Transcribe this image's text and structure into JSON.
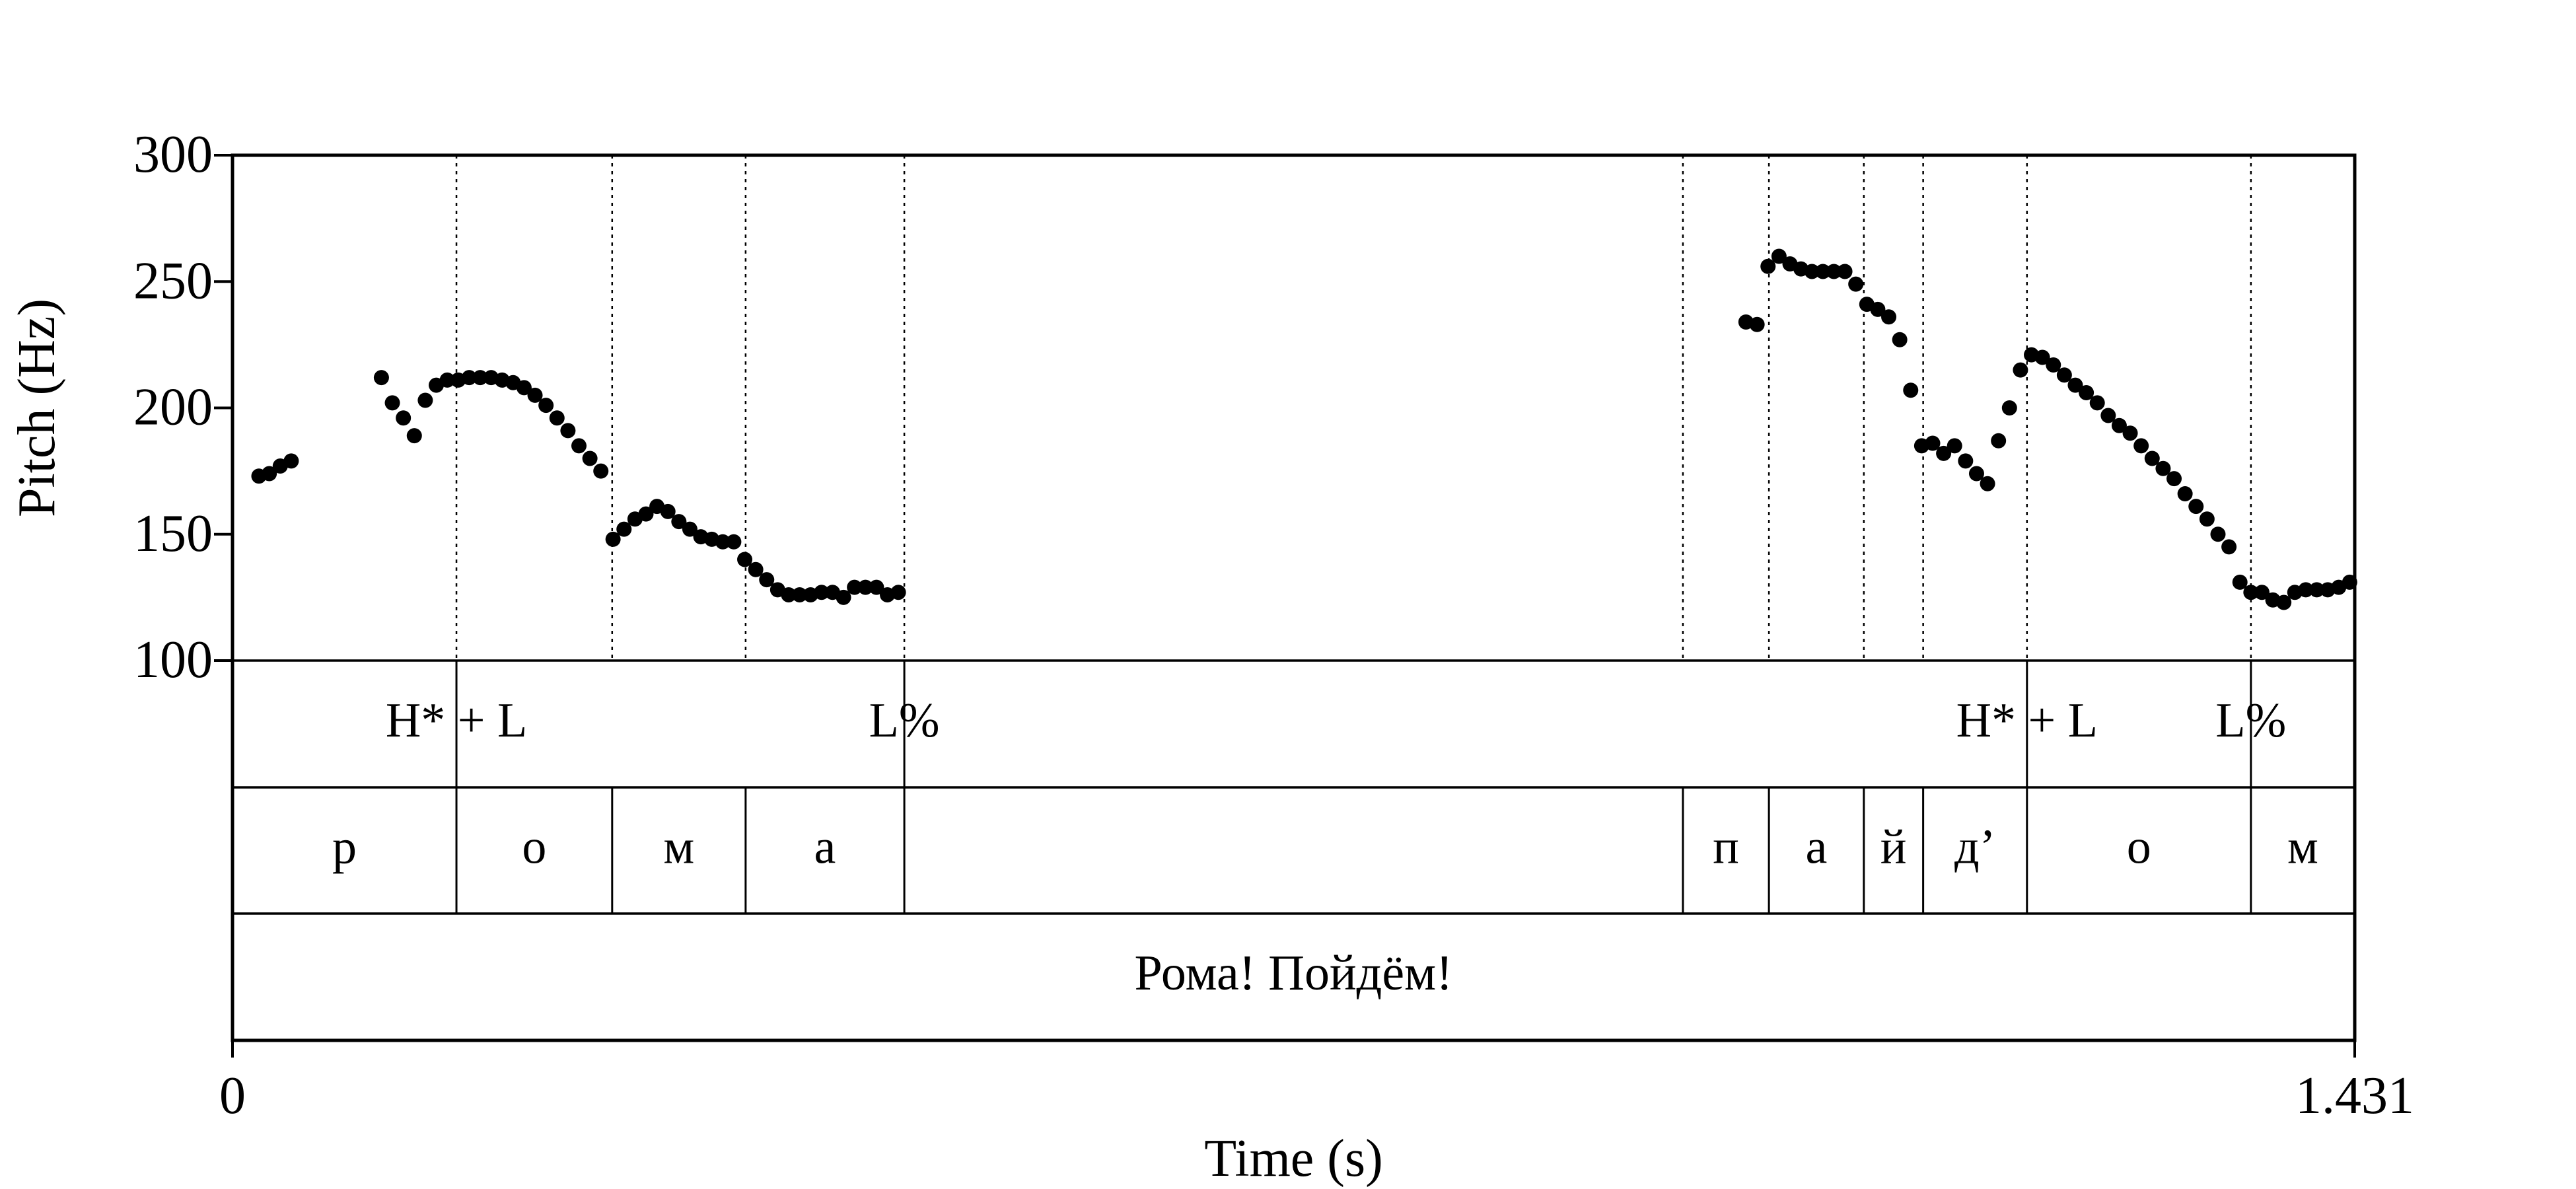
{
  "chart_data": {
    "type": "scatter",
    "title": "",
    "xlabel": "Time (s)",
    "ylabel": "Pitch (Hz)",
    "xlim": [
      0,
      1.431
    ],
    "ylim": [
      100,
      300
    ],
    "x_tick_labels": [
      "0",
      "1.431"
    ],
    "y_ticks": [
      100,
      150,
      200,
      250,
      300
    ],
    "y_tick_labels": [
      "100",
      "150",
      "200",
      "250",
      "300"
    ],
    "grid": false,
    "legend": "none",
    "point_color": "#000000",
    "series": [
      {
        "points": [
          [
            0.0178,
            173
          ],
          [
            0.0248,
            174
          ],
          [
            0.0322,
            177
          ],
          [
            0.0396,
            179
          ],
          [
            0.1004,
            212
          ],
          [
            0.1078,
            202
          ],
          [
            0.1152,
            196
          ],
          [
            0.1226,
            189
          ],
          [
            0.13,
            203
          ],
          [
            0.1374,
            209
          ],
          [
            0.1448,
            211
          ],
          [
            0.1522,
            211
          ],
          [
            0.1596,
            212
          ],
          [
            0.167,
            212
          ],
          [
            0.1744,
            212
          ],
          [
            0.1818,
            211
          ],
          [
            0.1892,
            210
          ],
          [
            0.1966,
            208
          ],
          [
            0.204,
            205
          ],
          [
            0.2114,
            201
          ],
          [
            0.2188,
            196
          ],
          [
            0.2262,
            191
          ],
          [
            0.2336,
            185
          ],
          [
            0.241,
            180
          ],
          [
            0.2484,
            175
          ],
          [
            0.2566,
            148
          ],
          [
            0.264,
            152
          ],
          [
            0.2714,
            156
          ],
          [
            0.2788,
            158
          ],
          [
            0.2862,
            161
          ],
          [
            0.2936,
            159
          ],
          [
            0.301,
            155
          ],
          [
            0.3084,
            152
          ],
          [
            0.3158,
            149
          ],
          [
            0.3232,
            148
          ],
          [
            0.3306,
            147
          ],
          [
            0.338,
            147
          ],
          [
            0.3454,
            140
          ],
          [
            0.3528,
            136
          ],
          [
            0.3602,
            132
          ],
          [
            0.3676,
            128
          ],
          [
            0.375,
            126
          ],
          [
            0.3824,
            126
          ],
          [
            0.3898,
            126
          ],
          [
            0.3972,
            127
          ],
          [
            0.4046,
            127
          ],
          [
            0.412,
            125
          ],
          [
            0.4194,
            129
          ],
          [
            0.4268,
            129
          ],
          [
            0.4342,
            129
          ],
          [
            0.4416,
            126
          ],
          [
            0.449,
            127
          ],
          [
            1.0205,
            234
          ],
          [
            1.028,
            233
          ],
          [
            1.0354,
            256
          ],
          [
            1.0428,
            260
          ],
          [
            1.0502,
            257
          ],
          [
            1.0576,
            255
          ],
          [
            1.065,
            254
          ],
          [
            1.0724,
            254
          ],
          [
            1.0798,
            254
          ],
          [
            1.0872,
            254
          ],
          [
            1.0946,
            249
          ],
          [
            1.102,
            241
          ],
          [
            1.1094,
            239
          ],
          [
            1.1168,
            236
          ],
          [
            1.1242,
            227
          ],
          [
            1.1316,
            207
          ],
          [
            1.139,
            185
          ],
          [
            1.1464,
            186
          ],
          [
            1.1538,
            182
          ],
          [
            1.1612,
            185
          ],
          [
            1.1686,
            179
          ],
          [
            1.176,
            174
          ],
          [
            1.1834,
            170
          ],
          [
            1.1908,
            187
          ],
          [
            1.1982,
            200
          ],
          [
            1.2056,
            215
          ],
          [
            1.213,
            221
          ],
          [
            1.2204,
            220
          ],
          [
            1.2278,
            217
          ],
          [
            1.2352,
            213
          ],
          [
            1.2426,
            209
          ],
          [
            1.25,
            206
          ],
          [
            1.2574,
            202
          ],
          [
            1.2648,
            197
          ],
          [
            1.2722,
            193
          ],
          [
            1.2796,
            190
          ],
          [
            1.287,
            185
          ],
          [
            1.2944,
            180
          ],
          [
            1.3018,
            176
          ],
          [
            1.3092,
            172
          ],
          [
            1.3166,
            166
          ],
          [
            1.324,
            161
          ],
          [
            1.3314,
            156
          ],
          [
            1.3388,
            150
          ],
          [
            1.3462,
            145
          ],
          [
            1.3536,
            131
          ],
          [
            1.361,
            127
          ],
          [
            1.3684,
            127
          ],
          [
            1.3758,
            124
          ],
          [
            1.3832,
            123
          ],
          [
            1.3906,
            127
          ],
          [
            1.398,
            128
          ],
          [
            1.4054,
            128
          ],
          [
            1.4128,
            128
          ],
          [
            1.4202,
            129
          ],
          [
            1.4276,
            131
          ]
        ]
      }
    ],
    "pitch_boundaries": [
      0.151,
      0.256,
      0.346,
      0.453,
      0.978,
      1.036,
      1.1,
      1.14,
      1.21,
      1.361
    ],
    "tiers": [
      {
        "name": "tones",
        "boundaries": [
          0.151,
          0.453,
          1.21,
          1.361
        ],
        "labels": [
          {
            "text": "H* + L",
            "x": 0.151
          },
          {
            "text": "L%",
            "x": 0.453
          },
          {
            "text": "H* + L",
            "x": 1.21
          },
          {
            "text": "L%",
            "x": 1.361
          }
        ]
      },
      {
        "name": "segments",
        "boundaries": [
          0.151,
          0.256,
          0.346,
          0.453,
          0.978,
          1.036,
          1.1,
          1.14,
          1.21,
          1.361
        ],
        "intervals": [
          {
            "text": "р",
            "start": 0.0,
            "end": 0.151
          },
          {
            "text": "о",
            "start": 0.151,
            "end": 0.256
          },
          {
            "text": "м",
            "start": 0.256,
            "end": 0.346
          },
          {
            "text": "а",
            "start": 0.346,
            "end": 0.453
          },
          {
            "text": "п",
            "start": 0.978,
            "end": 1.036
          },
          {
            "text": "а",
            "start": 1.036,
            "end": 1.1
          },
          {
            "text": "й",
            "start": 1.1,
            "end": 1.14
          },
          {
            "text": "д’",
            "start": 1.14,
            "end": 1.21
          },
          {
            "text": "о",
            "start": 1.21,
            "end": 1.361
          },
          {
            "text": "м",
            "start": 1.361,
            "end": 1.431
          }
        ]
      },
      {
        "name": "sentence",
        "boundaries": [],
        "intervals": [
          {
            "text": "Рома! Пойдём!",
            "start": 0.0,
            "end": 1.431
          }
        ]
      }
    ]
  }
}
